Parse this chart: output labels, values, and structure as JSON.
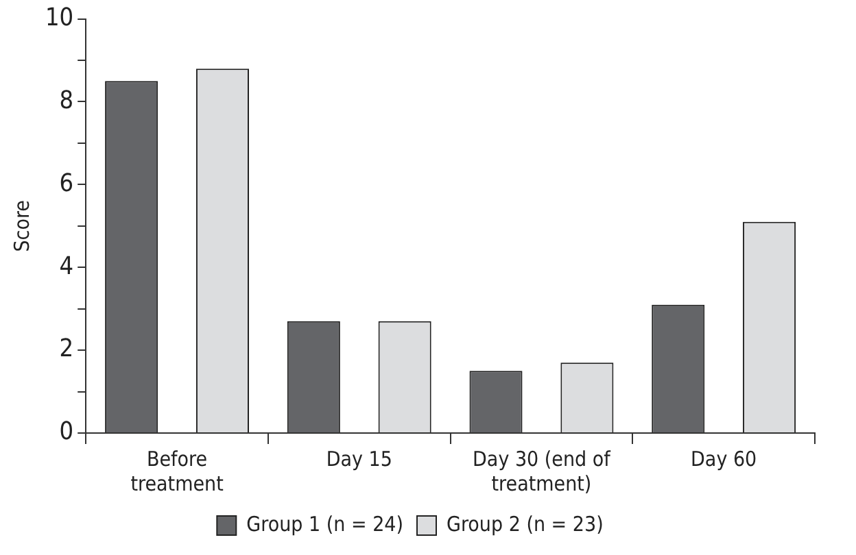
{
  "chart_data": {
    "type": "bar",
    "ylabel": "Score",
    "categories": [
      "Before treatment",
      "Day 15",
      "Day 30 (end of treatment)",
      "Day 60"
    ],
    "series": [
      {
        "name": "Group 1 (n = 24)",
        "color": "#646568",
        "values": [
          8.5,
          2.7,
          1.5,
          3.1
        ]
      },
      {
        "name": "Group 2 (n = 23)",
        "color": "#dcdddf",
        "values": [
          8.8,
          2.7,
          1.7,
          5.1
        ]
      }
    ],
    "ylim": [
      0,
      10
    ],
    "yticks": [
      0,
      {
        "value": 1,
        "label": null
      },
      2,
      {
        "value": 3,
        "label": null
      },
      4,
      {
        "value": 5,
        "label": null
      },
      6,
      {
        "value": 7,
        "label": null
      },
      8,
      {
        "value": 9,
        "label": null
      },
      10
    ],
    "grid": false,
    "legend": "bottom"
  }
}
